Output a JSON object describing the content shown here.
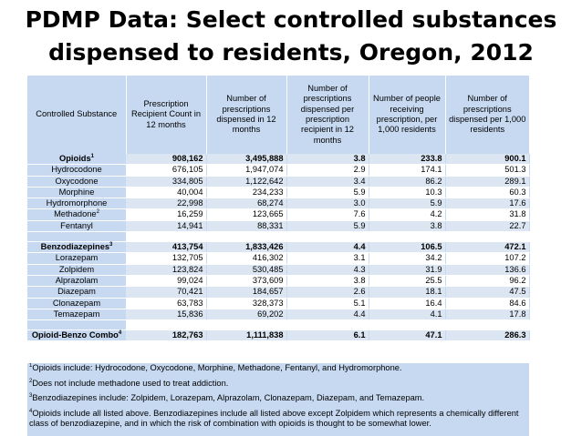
{
  "title_line1": "PDMP Data: Select controlled substances",
  "title_line2": "dispensed to residents, Oregon, 2012",
  "columns": [
    "Controlled Substance",
    "Prescription Recipient Count in 12 months",
    "Number of prescriptions dispensed in 12 months",
    "Number of prescriptions dispensed per prescription recipient in 12 months",
    "Number of people receiving prescription, per 1,000 residents",
    "Number of prescriptions dispensed per 1,000 residents"
  ],
  "rows": [
    {
      "name": "Opioids",
      "sup": "1",
      "group": true,
      "values": [
        "908,162",
        "3,495,888",
        "3.8",
        "233.8",
        "900.1"
      ]
    },
    {
      "name": "Hydrocodone",
      "sup": "",
      "group": false,
      "values": [
        "676,105",
        "1,947,074",
        "2.9",
        "174.1",
        "501.3"
      ]
    },
    {
      "name": "Oxycodone",
      "sup": "",
      "group": false,
      "values": [
        "334,805",
        "1,122,642",
        "3.4",
        "86.2",
        "289.1"
      ]
    },
    {
      "name": "Morphine",
      "sup": "",
      "group": false,
      "values": [
        "40,004",
        "234,233",
        "5.9",
        "10.3",
        "60.3"
      ]
    },
    {
      "name": "Hydromorphone",
      "sup": "",
      "group": false,
      "values": [
        "22,998",
        "68,274",
        "3.0",
        "5.9",
        "17.6"
      ]
    },
    {
      "name": "Methadone",
      "sup": "2",
      "group": false,
      "values": [
        "16,259",
        "123,665",
        "7.6",
        "4.2",
        "31.8"
      ]
    },
    {
      "name": "Fentanyl",
      "sup": "",
      "group": false,
      "values": [
        "14,941",
        "88,331",
        "5.9",
        "3.8",
        "22.7"
      ]
    },
    {
      "name": "Benzodiazepines",
      "sup": "3",
      "group": true,
      "values": [
        "413,754",
        "1,833,426",
        "4.4",
        "106.5",
        "472.1"
      ]
    },
    {
      "name": "Lorazepam",
      "sup": "",
      "group": false,
      "values": [
        "132,705",
        "416,302",
        "3.1",
        "34.2",
        "107.2"
      ]
    },
    {
      "name": "Zolpidem",
      "sup": "",
      "group": false,
      "values": [
        "123,824",
        "530,485",
        "4.3",
        "31.9",
        "136.6"
      ]
    },
    {
      "name": "Alprazolam",
      "sup": "",
      "group": false,
      "values": [
        "99,024",
        "373,609",
        "3.8",
        "25.5",
        "96.2"
      ]
    },
    {
      "name": "Diazepam",
      "sup": "",
      "group": false,
      "values": [
        "70,421",
        "184,657",
        "2.6",
        "18.1",
        "47.5"
      ]
    },
    {
      "name": "Clonazepam",
      "sup": "",
      "group": false,
      "values": [
        "63,783",
        "328,373",
        "5.1",
        "16.4",
        "84.6"
      ]
    },
    {
      "name": "Temazepam",
      "sup": "",
      "group": false,
      "values": [
        "15,836",
        "69,202",
        "4.4",
        "4.1",
        "17.8"
      ]
    },
    {
      "name": "Opioid-Benzo Combo",
      "sup": "4",
      "group": true,
      "values": [
        "182,763",
        "1,111,838",
        "6.1",
        "47.1",
        "286.3"
      ]
    }
  ],
  "notes": [
    {
      "sup": "1",
      "text": "Opioids include: Hydrocodone, Oxycodone, Morphine, Methadone, Fentanyl, and Hydromorphone."
    },
    {
      "sup": "2",
      "text": "Does not include methadone used to treat addiction."
    },
    {
      "sup": "3",
      "text": "Benzodiazepines include: Zolpidem, Lorazepam, Alprazolam, Clonazepam, Diazepam, and Temazepam."
    },
    {
      "sup": "4",
      "text": "Opioids include all listed above.  Benzodiazepines include all listed above except Zolpidem which represents a chemically different class of benzodiazepine, and in which the risk of combination with opioids is thought to be somewhat lower."
    }
  ],
  "colors": {
    "header_bg": "#c6d9f1",
    "row_alt_bg": "#dce6f2"
  }
}
